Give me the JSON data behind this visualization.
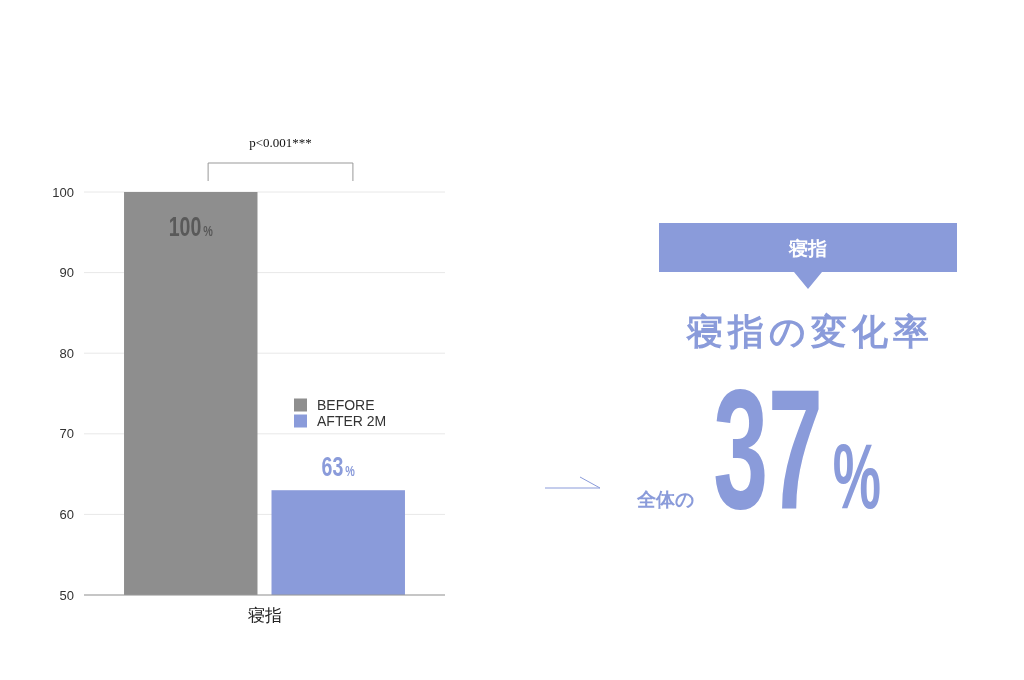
{
  "chart_data": [
    {
      "type": "bar",
      "categories": [
        "寝指"
      ],
      "series": [
        {
          "name": "BEFORE",
          "color": "#8e8e8e",
          "values": [
            100
          ],
          "value_labels": [
            "100%"
          ]
        },
        {
          "name": "AFTER 2M",
          "color": "#8a9bda",
          "values": [
            63
          ],
          "value_labels": [
            "63%"
          ]
        }
      ],
      "ylim": [
        50,
        100
      ],
      "yticks": [
        50,
        60,
        70,
        80,
        90,
        100
      ],
      "grid": "y",
      "legend": "right",
      "annotations": [
        "p<0.001***"
      ]
    },
    {
      "type": "other",
      "color": "#8a9bda",
      "title": "寝指",
      "subtitle": "寝指の変化率",
      "annotations": [
        "全体の",
        "37%"
      ]
    }
  ]
}
